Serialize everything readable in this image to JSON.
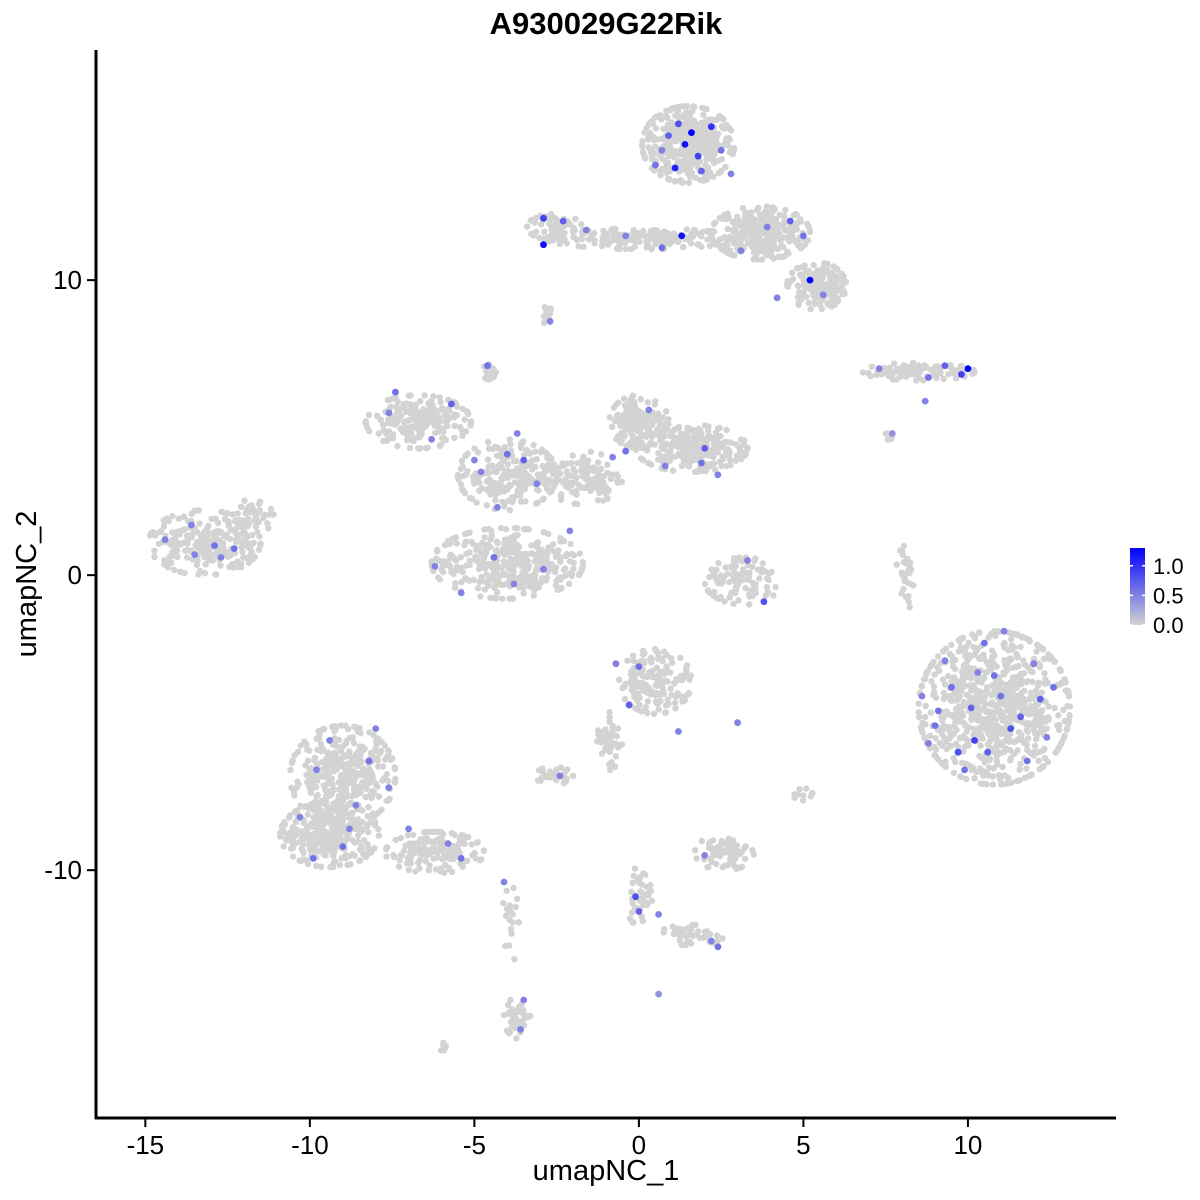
{
  "chart_data": {
    "type": "scatter",
    "title": "A930029G22Rik",
    "xlabel": "umapNC_1",
    "ylabel": "umapNC_2",
    "xlim": [
      -16.5,
      14.5
    ],
    "ylim": [
      -18.4,
      17.8
    ],
    "x_ticks": [
      -15,
      -10,
      -5,
      0,
      5,
      10
    ],
    "x_tick_labels": [
      "-15",
      "-10",
      "-5",
      "0",
      "5",
      "10"
    ],
    "y_ticks": [
      -10,
      0,
      10
    ],
    "y_tick_labels": [
      "-10",
      "0",
      "10"
    ],
    "grid": false,
    "legend_position": "right",
    "color_scale": {
      "low_color": "#d3d3d3",
      "high_color": "#0000ff",
      "range": [
        0,
        1.3
      ],
      "breaks": [
        1.0,
        0.5,
        0.0
      ],
      "break_labels": [
        "1.0",
        "0.5",
        "0.0"
      ]
    },
    "background_color": "#d3d3d3",
    "clusters": [
      {
        "cx": 1.5,
        "cy": 14.6,
        "rx": 1.4,
        "ry": 1.3,
        "n": 420
      },
      {
        "cx": 3.7,
        "cy": 11.6,
        "rx": 1.5,
        "ry": 0.9,
        "n": 300
      },
      {
        "cx": 5.4,
        "cy": 9.8,
        "rx": 0.9,
        "ry": 0.8,
        "n": 150
      },
      {
        "cx": 0.2,
        "cy": 11.4,
        "rx": 3.0,
        "ry": 0.35,
        "n": 180
      },
      {
        "cx": -2.5,
        "cy": 11.8,
        "rx": 0.9,
        "ry": 0.45,
        "n": 60
      },
      {
        "cx": -2.8,
        "cy": 8.8,
        "rx": 0.2,
        "ry": 0.3,
        "n": 10
      },
      {
        "cx": 8.5,
        "cy": 6.9,
        "rx": 1.7,
        "ry": 0.3,
        "n": 90
      },
      {
        "cx": 7.6,
        "cy": 4.7,
        "rx": 0.2,
        "ry": 0.2,
        "n": 6
      },
      {
        "cx": -6.7,
        "cy": 5.2,
        "rx": 1.6,
        "ry": 0.9,
        "n": 200
      },
      {
        "cx": -4.0,
        "cy": 3.4,
        "rx": 1.5,
        "ry": 1.2,
        "n": 220
      },
      {
        "cx": -1.7,
        "cy": 3.3,
        "rx": 1.2,
        "ry": 0.9,
        "n": 120
      },
      {
        "cx": 0.0,
        "cy": 5.2,
        "rx": 0.9,
        "ry": 0.9,
        "n": 150
      },
      {
        "cx": 1.6,
        "cy": 4.3,
        "rx": 1.7,
        "ry": 0.8,
        "n": 220
      },
      {
        "cx": -4.0,
        "cy": 0.4,
        "rx": 2.3,
        "ry": 1.2,
        "n": 360
      },
      {
        "cx": -4.5,
        "cy": 6.9,
        "rx": 0.25,
        "ry": 0.3,
        "n": 20
      },
      {
        "cx": -13.2,
        "cy": 1.1,
        "rx": 1.7,
        "ry": 1.1,
        "n": 230
      },
      {
        "cx": -11.7,
        "cy": 2.0,
        "rx": 0.6,
        "ry": 0.6,
        "n": 40
      },
      {
        "cx": 3.2,
        "cy": -0.2,
        "rx": 1.2,
        "ry": 0.8,
        "n": 100
      },
      {
        "cx": 8.1,
        "cy": -0.1,
        "rx": 0.3,
        "ry": 1.1,
        "n": 30
      },
      {
        "cx": 10.8,
        "cy": -4.5,
        "rx": 2.3,
        "ry": 2.6,
        "n": 800
      },
      {
        "cx": 0.5,
        "cy": -3.6,
        "rx": 1.1,
        "ry": 1.1,
        "n": 160
      },
      {
        "cx": -0.9,
        "cy": -5.6,
        "rx": 0.4,
        "ry": 1.0,
        "n": 40
      },
      {
        "cx": -2.6,
        "cy": -6.8,
        "rx": 0.6,
        "ry": 0.3,
        "n": 30
      },
      {
        "cx": 2.6,
        "cy": -9.4,
        "rx": 0.9,
        "ry": 0.6,
        "n": 60
      },
      {
        "cx": 5.0,
        "cy": -7.4,
        "rx": 0.3,
        "ry": 0.3,
        "n": 10
      },
      {
        "cx": -9.0,
        "cy": -6.8,
        "rx": 1.6,
        "ry": 1.7,
        "n": 380
      },
      {
        "cx": -9.4,
        "cy": -8.8,
        "rx": 1.5,
        "ry": 1.1,
        "n": 300
      },
      {
        "cx": -6.2,
        "cy": -9.4,
        "rx": 1.5,
        "ry": 0.7,
        "n": 150
      },
      {
        "cx": -3.7,
        "cy": -15.0,
        "rx": 0.4,
        "ry": 0.7,
        "n": 50
      },
      {
        "cx": -3.9,
        "cy": -11.8,
        "rx": 0.25,
        "ry": 1.4,
        "n": 20
      },
      {
        "cx": 0.0,
        "cy": -10.9,
        "rx": 0.4,
        "ry": 1.0,
        "n": 40
      },
      {
        "cx": 1.6,
        "cy": -12.2,
        "rx": 1.0,
        "ry": 0.35,
        "n": 40
      },
      {
        "cx": -5.9,
        "cy": -16.0,
        "rx": 0.2,
        "ry": 0.15,
        "n": 8
      }
    ],
    "expressing_cells": [
      {
        "x": 1.4,
        "y": 14.6,
        "v": 1.2
      },
      {
        "x": 1.1,
        "y": 13.8,
        "v": 1.1
      },
      {
        "x": 1.8,
        "y": 14.2,
        "v": 0.9
      },
      {
        "x": 2.2,
        "y": 15.2,
        "v": 1.0
      },
      {
        "x": 0.9,
        "y": 14.9,
        "v": 0.7
      },
      {
        "x": 1.6,
        "y": 15.0,
        "v": 1.3
      },
      {
        "x": 0.5,
        "y": 13.9,
        "v": 0.6
      },
      {
        "x": 2.5,
        "y": 14.4,
        "v": 0.6
      },
      {
        "x": 1.2,
        "y": 15.3,
        "v": 0.8
      },
      {
        "x": 1.9,
        "y": 13.7,
        "v": 0.7
      },
      {
        "x": 0.7,
        "y": 14.4,
        "v": 0.5
      },
      {
        "x": 2.8,
        "y": 13.6,
        "v": 0.5
      },
      {
        "x": 1.3,
        "y": 11.5,
        "v": 1.2
      },
      {
        "x": 5.2,
        "y": 10.0,
        "v": 1.3
      },
      {
        "x": 4.6,
        "y": 12.0,
        "v": 0.7
      },
      {
        "x": 3.9,
        "y": 11.8,
        "v": 0.5
      },
      {
        "x": 3.1,
        "y": 11.0,
        "v": 0.5
      },
      {
        "x": 5.6,
        "y": 9.5,
        "v": 0.5
      },
      {
        "x": 4.2,
        "y": 9.4,
        "v": 0.5
      },
      {
        "x": 5.0,
        "y": 11.5,
        "v": 0.6
      },
      {
        "x": -2.9,
        "y": 11.2,
        "v": 1.2
      },
      {
        "x": -2.9,
        "y": 12.1,
        "v": 0.9
      },
      {
        "x": -2.3,
        "y": 12.0,
        "v": 0.7
      },
      {
        "x": -1.6,
        "y": 11.7,
        "v": 0.5
      },
      {
        "x": -0.4,
        "y": 11.5,
        "v": 0.5
      },
      {
        "x": 0.7,
        "y": 11.1,
        "v": 0.6
      },
      {
        "x": -2.7,
        "y": 8.6,
        "v": 0.5
      },
      {
        "x": 10.0,
        "y": 7.0,
        "v": 1.3
      },
      {
        "x": 9.8,
        "y": 6.8,
        "v": 0.9
      },
      {
        "x": 9.3,
        "y": 7.1,
        "v": 0.7
      },
      {
        "x": 8.8,
        "y": 6.7,
        "v": 0.6
      },
      {
        "x": 7.3,
        "y": 7.0,
        "v": 0.5
      },
      {
        "x": 8.7,
        "y": 5.9,
        "v": 0.5
      },
      {
        "x": 7.7,
        "y": 4.8,
        "v": 0.4
      },
      {
        "x": -7.4,
        "y": 6.2,
        "v": 0.6
      },
      {
        "x": -7.6,
        "y": 5.5,
        "v": 0.5
      },
      {
        "x": -5.7,
        "y": 5.8,
        "v": 0.7
      },
      {
        "x": -6.3,
        "y": 4.6,
        "v": 0.5
      },
      {
        "x": -5.0,
        "y": 3.9,
        "v": 0.5
      },
      {
        "x": -4.0,
        "y": 4.1,
        "v": 0.6
      },
      {
        "x": -3.7,
        "y": 4.8,
        "v": 0.5
      },
      {
        "x": -3.5,
        "y": 3.9,
        "v": 0.7
      },
      {
        "x": -4.8,
        "y": 3.5,
        "v": 0.5
      },
      {
        "x": -4.3,
        "y": 2.3,
        "v": 0.5
      },
      {
        "x": -4.6,
        "y": 7.1,
        "v": 0.6
      },
      {
        "x": -3.1,
        "y": 3.1,
        "v": 0.5
      },
      {
        "x": 0.3,
        "y": 5.6,
        "v": 0.5
      },
      {
        "x": -0.4,
        "y": 4.2,
        "v": 0.6
      },
      {
        "x": 0.8,
        "y": 3.7,
        "v": 0.5
      },
      {
        "x": 1.9,
        "y": 3.8,
        "v": 0.6
      },
      {
        "x": 2.0,
        "y": 4.3,
        "v": 0.7
      },
      {
        "x": 2.4,
        "y": 3.4,
        "v": 0.5
      },
      {
        "x": -0.8,
        "y": 4.0,
        "v": 0.5
      },
      {
        "x": -2.1,
        "y": 1.5,
        "v": 0.5
      },
      {
        "x": -6.2,
        "y": 0.3,
        "v": 0.5
      },
      {
        "x": -4.4,
        "y": 0.6,
        "v": 0.6
      },
      {
        "x": -5.4,
        "y": -0.6,
        "v": 0.5
      },
      {
        "x": -2.9,
        "y": 0.2,
        "v": 0.5
      },
      {
        "x": -3.8,
        "y": -0.3,
        "v": 0.5
      },
      {
        "x": -13.6,
        "y": 1.7,
        "v": 0.5
      },
      {
        "x": -12.9,
        "y": 1.0,
        "v": 0.6
      },
      {
        "x": -12.7,
        "y": 0.6,
        "v": 0.5
      },
      {
        "x": -13.5,
        "y": 0.7,
        "v": 0.5
      },
      {
        "x": -14.4,
        "y": 1.2,
        "v": 0.5
      },
      {
        "x": -12.3,
        "y": 0.9,
        "v": 0.6
      },
      {
        "x": 3.8,
        "y": -0.9,
        "v": 0.8
      },
      {
        "x": 3.3,
        "y": 0.5,
        "v": 0.5
      },
      {
        "x": 10.2,
        "y": -5.6,
        "v": 0.9
      },
      {
        "x": 9.7,
        "y": -6.0,
        "v": 0.8
      },
      {
        "x": 11.3,
        "y": -5.2,
        "v": 0.8
      },
      {
        "x": 12.2,
        "y": -4.2,
        "v": 0.7
      },
      {
        "x": 10.8,
        "y": -3.4,
        "v": 0.6
      },
      {
        "x": 9.1,
        "y": -4.6,
        "v": 0.6
      },
      {
        "x": 11.8,
        "y": -6.3,
        "v": 0.6
      },
      {
        "x": 10.5,
        "y": -2.3,
        "v": 0.6
      },
      {
        "x": 11.1,
        "y": -1.9,
        "v": 0.5
      },
      {
        "x": 9.5,
        "y": -3.8,
        "v": 0.6
      },
      {
        "x": 12.6,
        "y": -3.8,
        "v": 0.6
      },
      {
        "x": 10.1,
        "y": -4.5,
        "v": 0.7
      },
      {
        "x": 8.8,
        "y": -5.7,
        "v": 0.5
      },
      {
        "x": 11.6,
        "y": -4.8,
        "v": 0.7
      },
      {
        "x": 9.9,
        "y": -6.6,
        "v": 0.6
      },
      {
        "x": 12.4,
        "y": -5.5,
        "v": 0.5
      },
      {
        "x": 10.6,
        "y": -6.0,
        "v": 0.7
      },
      {
        "x": 11.0,
        "y": -4.1,
        "v": 0.6
      },
      {
        "x": 9.3,
        "y": -2.9,
        "v": 0.5
      },
      {
        "x": 12.0,
        "y": -3.0,
        "v": 0.5
      },
      {
        "x": 10.3,
        "y": -3.3,
        "v": 0.5
      },
      {
        "x": 8.6,
        "y": -4.1,
        "v": 0.5
      },
      {
        "x": 9.0,
        "y": -5.1,
        "v": 0.6
      },
      {
        "x": 0.0,
        "y": -3.1,
        "v": 0.6
      },
      {
        "x": -0.3,
        "y": -4.4,
        "v": 0.7
      },
      {
        "x": 1.2,
        "y": -5.3,
        "v": 0.5
      },
      {
        "x": -0.7,
        "y": -3.0,
        "v": 0.5
      },
      {
        "x": -2.4,
        "y": -6.8,
        "v": 0.5
      },
      {
        "x": 2.0,
        "y": -9.5,
        "v": 0.5
      },
      {
        "x": 3.0,
        "y": -5.0,
        "v": 0.5
      },
      {
        "x": -9.4,
        "y": -5.6,
        "v": 0.5
      },
      {
        "x": -9.8,
        "y": -6.6,
        "v": 0.5
      },
      {
        "x": -8.2,
        "y": -6.3,
        "v": 0.6
      },
      {
        "x": -8.6,
        "y": -7.8,
        "v": 0.5
      },
      {
        "x": -9.0,
        "y": -9.2,
        "v": 0.6
      },
      {
        "x": -9.9,
        "y": -9.6,
        "v": 0.6
      },
      {
        "x": -7.6,
        "y": -7.2,
        "v": 0.5
      },
      {
        "x": -8.8,
        "y": -8.6,
        "v": 0.5
      },
      {
        "x": -5.4,
        "y": -9.6,
        "v": 0.6
      },
      {
        "x": -5.8,
        "y": -9.1,
        "v": 0.5
      },
      {
        "x": -4.1,
        "y": -10.4,
        "v": 0.5
      },
      {
        "x": -10.3,
        "y": -8.2,
        "v": 0.5
      },
      {
        "x": -7.0,
        "y": -8.6,
        "v": 0.5
      },
      {
        "x": -8.0,
        "y": -5.2,
        "v": 0.5
      },
      {
        "x": 0.0,
        "y": -11.4,
        "v": 0.7
      },
      {
        "x": -0.1,
        "y": -10.9,
        "v": 0.8
      },
      {
        "x": 2.4,
        "y": -12.6,
        "v": 0.6
      },
      {
        "x": 2.2,
        "y": -12.4,
        "v": 0.5
      },
      {
        "x": 0.6,
        "y": -11.5,
        "v": 0.5
      },
      {
        "x": -3.5,
        "y": -14.4,
        "v": 0.5
      },
      {
        "x": -3.6,
        "y": -15.4,
        "v": 0.5
      },
      {
        "x": 0.6,
        "y": -14.2,
        "v": 0.4
      }
    ]
  }
}
